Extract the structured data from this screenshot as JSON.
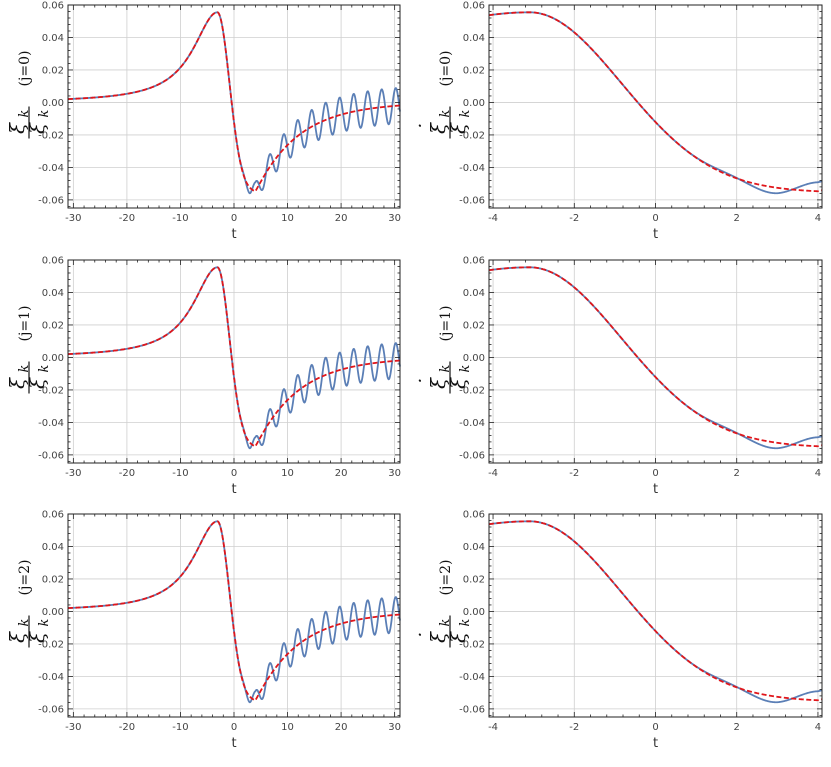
{
  "colors": {
    "numeric": "#5b7fb6",
    "approx": "#e0161b",
    "grid": "#cfcfcf",
    "frame": "#222222"
  },
  "labels": {
    "t": "t",
    "xi": "ξ",
    "k": "k",
    "dot": "˙"
  },
  "chart_data": [
    {
      "type": "line",
      "row": 0,
      "col": 0,
      "j_label": "(j=0)",
      "xlabel": "t",
      "xlim": [
        -31,
        31
      ],
      "ylim": [
        -0.065,
        0.06
      ],
      "xticks": [
        -30,
        -20,
        -10,
        0,
        10,
        20,
        30
      ],
      "xtick_labels": [
        "-30",
        "-20",
        "-10",
        "0",
        "10",
        "20",
        "30"
      ],
      "yticks": [
        -0.06,
        -0.04,
        -0.02,
        0.0,
        0.02,
        0.04,
        0.06
      ],
      "ytick_labels": [
        "-0.06",
        "-0.04",
        "-0.02",
        "0.00",
        "0.02",
        "0.04",
        "0.06"
      ],
      "osc_amp": 0.011,
      "series": [
        {
          "style": "solid"
        },
        {
          "style": "dashed"
        }
      ]
    },
    {
      "type": "line",
      "row": 0,
      "col": 1,
      "j_label": "(j=0)",
      "xlabel": "t",
      "xlim": [
        -4.1,
        4.1
      ],
      "ylim": [
        -0.065,
        0.06
      ],
      "xticks": [
        -4,
        -2,
        0,
        2,
        4
      ],
      "xtick_labels": [
        "-4",
        "-2",
        "0",
        "2",
        "4"
      ],
      "yticks": [
        -0.06,
        -0.04,
        -0.02,
        0.0,
        0.02,
        0.04,
        0.06
      ],
      "ytick_labels": [
        "-0.06",
        "-0.04",
        "-0.02",
        "0.00",
        "0.02",
        "0.04",
        "0.06"
      ],
      "osc_amp": 0.011,
      "series": [
        {
          "style": "solid"
        },
        {
          "style": "dashed"
        }
      ]
    },
    {
      "type": "line",
      "row": 1,
      "col": 0,
      "j_label": "(j=1)",
      "xlabel": "t",
      "xlim": [
        -31,
        31
      ],
      "ylim": [
        -0.065,
        0.06
      ],
      "xticks": [
        -30,
        -20,
        -10,
        0,
        10,
        20,
        30
      ],
      "xtick_labels": [
        "-30",
        "-20",
        "-10",
        "0",
        "10",
        "20",
        "30"
      ],
      "yticks": [
        -0.06,
        -0.04,
        -0.02,
        0.0,
        0.02,
        0.04,
        0.06
      ],
      "ytick_labels": [
        "-0.06",
        "-0.04",
        "-0.02",
        "0.00",
        "0.02",
        "0.04",
        "0.06"
      ],
      "osc_amp": 0.011,
      "series": [
        {
          "style": "solid"
        },
        {
          "style": "dashed"
        }
      ]
    },
    {
      "type": "line",
      "row": 1,
      "col": 1,
      "j_label": "(j=1)",
      "xlabel": "t",
      "xlim": [
        -4.1,
        4.1
      ],
      "ylim": [
        -0.065,
        0.06
      ],
      "xticks": [
        -4,
        -2,
        0,
        2,
        4
      ],
      "xtick_labels": [
        "-4",
        "-2",
        "0",
        "2",
        "4"
      ],
      "yticks": [
        -0.06,
        -0.04,
        -0.02,
        0.0,
        0.02,
        0.04,
        0.06
      ],
      "ytick_labels": [
        "-0.06",
        "-0.04",
        "-0.02",
        "0.00",
        "0.02",
        "0.04",
        "0.06"
      ],
      "osc_amp": 0.011,
      "series": [
        {
          "style": "solid"
        },
        {
          "style": "dashed"
        }
      ]
    },
    {
      "type": "line",
      "row": 2,
      "col": 0,
      "j_label": "(j=2)",
      "xlabel": "t",
      "xlim": [
        -31,
        31
      ],
      "ylim": [
        -0.065,
        0.06
      ],
      "xticks": [
        -30,
        -20,
        -10,
        0,
        10,
        20,
        30
      ],
      "xtick_labels": [
        "-30",
        "-20",
        "-10",
        "0",
        "10",
        "20",
        "30"
      ],
      "yticks": [
        -0.06,
        -0.04,
        -0.02,
        0.0,
        0.02,
        0.04,
        0.06
      ],
      "ytick_labels": [
        "-0.06",
        "-0.04",
        "-0.02",
        "0.00",
        "0.02",
        "0.04",
        "0.06"
      ],
      "osc_amp": 0.011,
      "series": [
        {
          "style": "solid"
        },
        {
          "style": "dashed"
        }
      ]
    },
    {
      "type": "line",
      "row": 2,
      "col": 1,
      "j_label": "(j=2)",
      "xlabel": "t",
      "xlim": [
        -4.1,
        4.1
      ],
      "ylim": [
        -0.065,
        0.06
      ],
      "xticks": [
        -4,
        -2,
        0,
        2,
        4
      ],
      "xtick_labels": [
        "-4",
        "-2",
        "0",
        "2",
        "4"
      ],
      "yticks": [
        -0.06,
        -0.04,
        -0.02,
        0.0,
        0.02,
        0.04,
        0.06
      ],
      "ytick_labels": [
        "-0.06",
        "-0.04",
        "-0.02",
        "0.00",
        "0.02",
        "0.04",
        "0.06"
      ],
      "osc_amp": 0.011,
      "series": [
        {
          "style": "solid"
        },
        {
          "style": "dashed"
        }
      ]
    }
  ]
}
